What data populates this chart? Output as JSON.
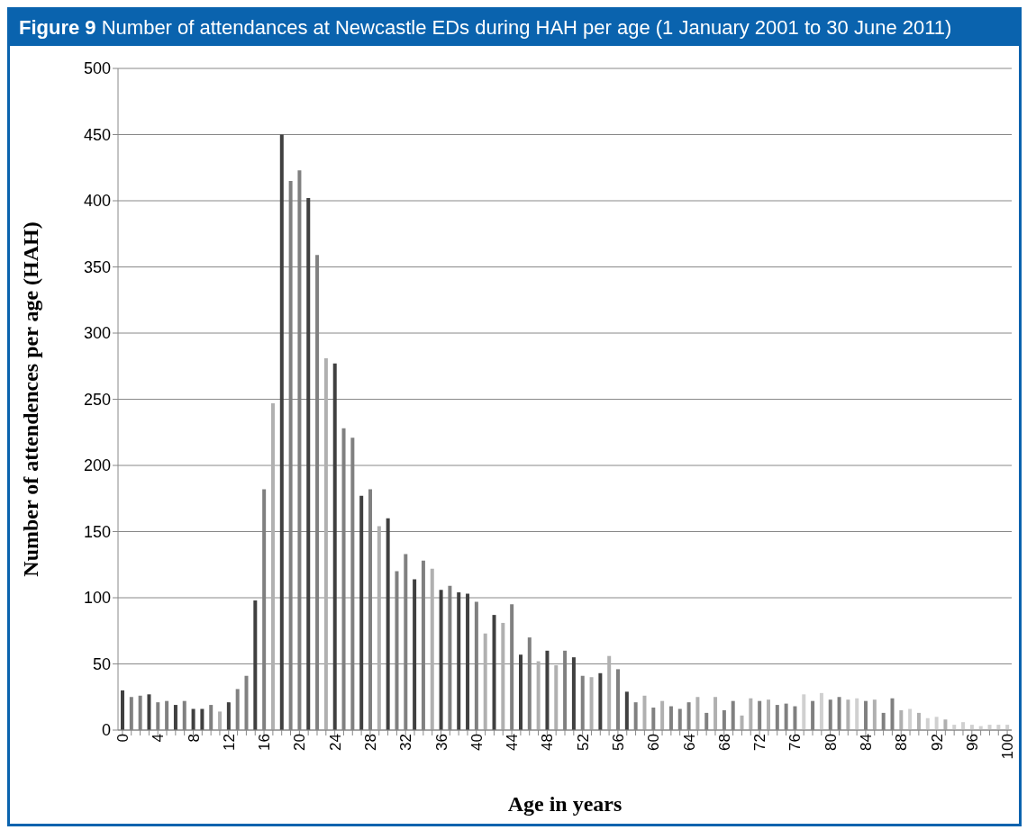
{
  "chart_data": {
    "type": "bar",
    "title": "Figure 9 Number of attendances at Newcastle EDs during HAH per age (1 January 2001 to 30 June 2011)",
    "xlabel": "Age in years",
    "ylabel": "Number of attendences per age (HAH)",
    "categories": [
      "0",
      null,
      null,
      null,
      "4",
      null,
      null,
      null,
      "8",
      null,
      null,
      null,
      "12",
      null,
      null,
      null,
      "16",
      null,
      null,
      null,
      "20",
      null,
      null,
      null,
      "24",
      null,
      null,
      null,
      "28",
      null,
      null,
      null,
      "32",
      null,
      null,
      null,
      "36",
      null,
      null,
      null,
      "40",
      null,
      null,
      null,
      "44",
      null,
      null,
      null,
      "48",
      null,
      null,
      null,
      "52",
      null,
      null,
      null,
      "56",
      null,
      null,
      null,
      "60",
      null,
      null,
      null,
      "64",
      null,
      null,
      null,
      "68",
      null,
      null,
      null,
      "72",
      null,
      null,
      null,
      "76",
      null,
      null,
      null,
      "80",
      null,
      null,
      null,
      "84",
      null,
      null,
      null,
      "88",
      null,
      null,
      null,
      "92",
      null,
      null,
      null,
      "96",
      null,
      null,
      null,
      "100"
    ],
    "values": [
      30,
      25,
      26,
      27,
      21,
      22,
      19,
      22,
      16,
      16,
      19,
      14,
      21,
      31,
      41,
      98,
      182,
      247,
      450,
      415,
      423,
      402,
      359,
      281,
      277,
      228,
      221,
      177,
      182,
      154,
      160,
      120,
      133,
      114,
      128,
      122,
      106,
      109,
      104,
      103,
      97,
      73,
      87,
      81,
      95,
      57,
      70,
      52,
      60,
      49,
      60,
      55,
      41,
      40,
      43,
      56,
      46,
      29,
      21,
      26,
      17,
      22,
      18,
      16,
      21,
      25,
      13,
      25,
      15,
      22,
      11,
      24,
      22,
      23,
      19,
      20,
      18,
      27,
      22,
      28,
      23,
      25,
      23,
      24,
      22,
      23,
      13,
      24,
      15,
      16,
      13,
      9,
      10,
      8,
      4,
      6,
      4,
      3,
      4,
      4,
      4
    ],
    "colors": [
      "#404040",
      "#808080",
      "#808080",
      "#404040",
      "#808080",
      "#808080",
      "#404040",
      "#808080",
      "#404040",
      "#404040",
      "#808080",
      "#b0b0b0",
      "#404040",
      "#808080",
      "#808080",
      "#404040",
      "#808080",
      "#b0b0b0",
      "#404040",
      "#808080",
      "#808080",
      "#404040",
      "#808080",
      "#b0b0b0",
      "#404040",
      "#808080",
      "#808080",
      "#404040",
      "#808080",
      "#b0b0b0",
      "#404040",
      "#808080",
      "#808080",
      "#404040",
      "#808080",
      "#b0b0b0",
      "#404040",
      "#808080",
      "#404040",
      "#404040",
      "#808080",
      "#b0b0b0",
      "#404040",
      "#b0b0b0",
      "#808080",
      "#404040",
      "#808080",
      "#b0b0b0",
      "#404040",
      "#b0b0b0",
      "#808080",
      "#404040",
      "#808080",
      "#b0b0b0",
      "#404040",
      "#b0b0b0",
      "#808080",
      "#404040",
      "#808080",
      "#b0b0b0",
      "#808080",
      "#b0b0b0",
      "#808080",
      "#808080",
      "#808080",
      "#b0b0b0",
      "#808080",
      "#b0b0b0",
      "#808080",
      "#808080",
      "#b0b0b0",
      "#b0b0b0",
      "#808080",
      "#b0b0b0",
      "#808080",
      "#808080",
      "#808080",
      "#d0d0d0",
      "#808080",
      "#d0d0d0",
      "#808080",
      "#808080",
      "#b0b0b0",
      "#d0d0d0",
      "#808080",
      "#b0b0b0",
      "#808080",
      "#808080",
      "#b0b0b0",
      "#d0d0d0",
      "#b0b0b0",
      "#d0d0d0",
      "#d0d0d0",
      "#b0b0b0",
      "#d0d0d0",
      "#d0d0d0",
      "#d0d0d0",
      "#d0d0d0",
      "#d0d0d0",
      "#d0d0d0",
      "#d0d0d0"
    ],
    "ylim": [
      0,
      500
    ],
    "yticks": [
      0,
      50,
      100,
      150,
      200,
      250,
      300,
      350,
      400,
      450,
      500
    ],
    "grid": "y",
    "legend": false
  }
}
